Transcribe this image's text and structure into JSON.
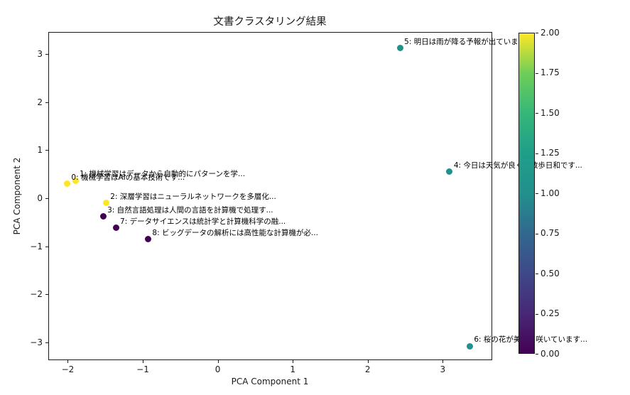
{
  "chart_data": {
    "type": "scatter",
    "title": "文書クラスタリング結果",
    "xlabel": "PCA Component 1",
    "ylabel": "PCA Component 2",
    "xlim": [
      -2.26,
      3.66
    ],
    "ylim": [
      -3.37,
      3.46
    ],
    "grid": false,
    "legend": "colorbar-right",
    "xticks": [
      {
        "value": -2,
        "label": "−2"
      },
      {
        "value": -1,
        "label": "−1"
      },
      {
        "value": 0,
        "label": "0"
      },
      {
        "value": 1,
        "label": "1"
      },
      {
        "value": 2,
        "label": "2"
      },
      {
        "value": 3,
        "label": "3"
      }
    ],
    "yticks": [
      {
        "value": 3,
        "label": "3"
      },
      {
        "value": 2,
        "label": "2"
      },
      {
        "value": 1,
        "label": "1"
      },
      {
        "value": 0,
        "label": "0"
      },
      {
        "value": -1,
        "label": "−1"
      },
      {
        "value": -2,
        "label": "−2"
      },
      {
        "value": -3,
        "label": "−3"
      }
    ],
    "cluster_colors": {
      "0": "#440154",
      "1": "#21918c",
      "2": "#fde725"
    },
    "points": [
      {
        "id": 0,
        "x": -2.01,
        "y": 0.3,
        "cluster": 2,
        "label": "0: 機械学習はAIの基本技術です..."
      },
      {
        "id": 1,
        "x": -1.9,
        "y": 0.37,
        "cluster": 2,
        "label": "1: 機械学習はデータから自動的にパターンを学..."
      },
      {
        "id": 2,
        "x": -1.49,
        "y": -0.1,
        "cluster": 2,
        "label": "2: 深層学習はニューラルネットワークを多層化..."
      },
      {
        "id": 3,
        "x": -1.53,
        "y": -0.38,
        "cluster": 0,
        "label": "3: 自然言語処理は人間の言語を計算機で処理す..."
      },
      {
        "id": 4,
        "x": 3.09,
        "y": 0.55,
        "cluster": 1,
        "label": "4: 今日は天気が良く、散歩日和です..."
      },
      {
        "id": 5,
        "x": 2.43,
        "y": 3.12,
        "cluster": 1,
        "label": "5: 明日は雨が降る予報が出ています..."
      },
      {
        "id": 6,
        "x": 3.36,
        "y": -3.08,
        "cluster": 1,
        "label": "6: 桜の花が美しく咲いています..."
      },
      {
        "id": 7,
        "x": -1.36,
        "y": -0.62,
        "cluster": 0,
        "label": "7: データサイエンスは統計学と計算機科学の融..."
      },
      {
        "id": 8,
        "x": -0.93,
        "y": -0.85,
        "cluster": 0,
        "label": "8: ビッグデータの解析には高性能な計算機が必..."
      }
    ],
    "colorbar": {
      "colormap": "viridis",
      "min": 0,
      "max": 2,
      "ticks": [
        {
          "value": 2.0,
          "label": "2.00"
        },
        {
          "value": 1.75,
          "label": "1.75"
        },
        {
          "value": 1.5,
          "label": "1.50"
        },
        {
          "value": 1.25,
          "label": "1.25"
        },
        {
          "value": 1.0,
          "label": "1.00"
        },
        {
          "value": 0.75,
          "label": "0.75"
        },
        {
          "value": 0.5,
          "label": "0.50"
        },
        {
          "value": 0.25,
          "label": "0.25"
        },
        {
          "value": 0.0,
          "label": "0.00"
        }
      ]
    }
  }
}
